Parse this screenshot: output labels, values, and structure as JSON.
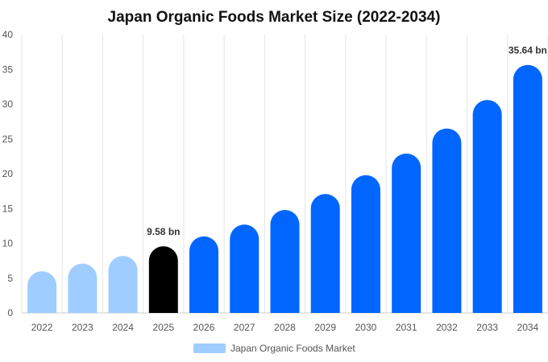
{
  "chart_data": {
    "type": "bar",
    "title": "Japan Organic Foods Market Size (2022-2034)",
    "xlabel": "",
    "ylabel": "",
    "ylim": [
      0,
      40
    ],
    "yticks": [
      0,
      5,
      10,
      15,
      20,
      25,
      30,
      35,
      40
    ],
    "grid": {
      "x": true,
      "y": false
    },
    "legend_position": "bottom",
    "categories": [
      "2022",
      "2023",
      "2024",
      "2025",
      "2026",
      "2027",
      "2028",
      "2029",
      "2030",
      "2031",
      "2032",
      "2033",
      "2034"
    ],
    "series": [
      {
        "name": "Japan Organic Foods Market",
        "values": [
          6.0,
          7.1,
          8.2,
          9.58,
          11.0,
          12.7,
          14.8,
          17.1,
          19.8,
          22.9,
          26.5,
          30.6,
          35.64
        ]
      }
    ],
    "data_labels": [
      {
        "index": 3,
        "text": "9.58 bn"
      },
      {
        "index": 12,
        "text": "35.64 bn"
      }
    ],
    "colors": {
      "historical": "#a0cdff",
      "current": "#000000",
      "forecast": "#0066ff",
      "legend_swatch": "#a0cdff",
      "grid": "#e6e6e6",
      "axis": "#cccccc"
    },
    "color_groups": [
      "historical",
      "historical",
      "historical",
      "current",
      "forecast",
      "forecast",
      "forecast",
      "forecast",
      "forecast",
      "forecast",
      "forecast",
      "forecast",
      "forecast"
    ]
  }
}
